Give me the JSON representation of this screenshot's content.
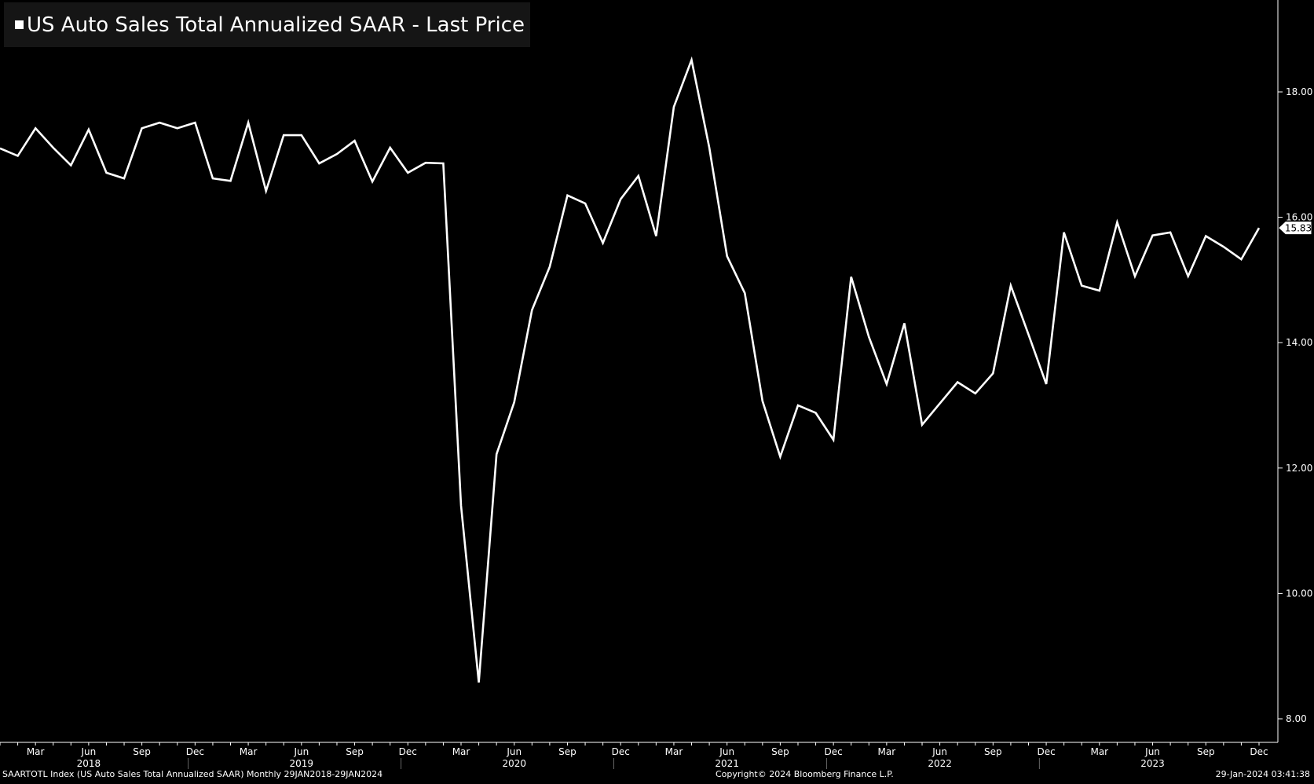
{
  "legend": {
    "text": "US Auto Sales Total Annualized SAAR - Last Price"
  },
  "footer": {
    "left": "SAARTOTL Index (US Auto Sales Total Annualized SAAR)  Monthly 29JAN2018-29JAN2024",
    "center": "Copyright© 2024 Bloomberg Finance L.P.",
    "right": "29-Jan-2024 03:41:38"
  },
  "colors": {
    "background": "#000000",
    "line": "#ffffff",
    "legend_bg": "#151515"
  },
  "chart_data": {
    "type": "line",
    "title": "US Auto Sales Total Annualized SAAR - Last Price",
    "ylim": [
      7.6,
      19.3
    ],
    "y_ticks": [
      "8.00",
      "10.00",
      "12.00",
      "14.00",
      "16.00",
      "18.00"
    ],
    "x_month_ticks": [
      {
        "label": "Mar",
        "x": "2018-03"
      },
      {
        "label": "Jun",
        "x": "2018-06"
      },
      {
        "label": "Sep",
        "x": "2018-09"
      },
      {
        "label": "Dec",
        "x": "2018-12"
      },
      {
        "label": "Mar",
        "x": "2019-03"
      },
      {
        "label": "Jun",
        "x": "2019-06"
      },
      {
        "label": "Sep",
        "x": "2019-09"
      },
      {
        "label": "Dec",
        "x": "2019-12"
      },
      {
        "label": "Mar",
        "x": "2020-03"
      },
      {
        "label": "Jun",
        "x": "2020-06"
      },
      {
        "label": "Sep",
        "x": "2020-09"
      },
      {
        "label": "Dec",
        "x": "2020-12"
      },
      {
        "label": "Mar",
        "x": "2021-03"
      },
      {
        "label": "Jun",
        "x": "2021-06"
      },
      {
        "label": "Sep",
        "x": "2021-09"
      },
      {
        "label": "Dec",
        "x": "2021-12"
      },
      {
        "label": "Mar",
        "x": "2022-03"
      },
      {
        "label": "Jun",
        "x": "2022-06"
      },
      {
        "label": "Sep",
        "x": "2022-09"
      },
      {
        "label": "Dec",
        "x": "2022-12"
      },
      {
        "label": "Mar",
        "x": "2023-03"
      },
      {
        "label": "Jun",
        "x": "2023-06"
      },
      {
        "label": "Sep",
        "x": "2023-09"
      },
      {
        "label": "Dec",
        "x": "2023-12"
      }
    ],
    "x_year_labels": [
      {
        "label": "2018",
        "x": "2018-06"
      },
      {
        "label": "2019",
        "x": "2019-06"
      },
      {
        "label": "2020",
        "x": "2020-06"
      },
      {
        "label": "2021",
        "x": "2021-06"
      },
      {
        "label": "2022",
        "x": "2022-06"
      },
      {
        "label": "2023",
        "x": "2023-06"
      }
    ],
    "last_value_label": "15.83",
    "series": [
      {
        "name": "US Auto Sales Total Annualized SAAR",
        "x": [
          "2018-01",
          "2018-02",
          "2018-03",
          "2018-04",
          "2018-05",
          "2018-06",
          "2018-07",
          "2018-08",
          "2018-09",
          "2018-10",
          "2018-11",
          "2018-12",
          "2019-01",
          "2019-02",
          "2019-03",
          "2019-04",
          "2019-05",
          "2019-06",
          "2019-07",
          "2019-08",
          "2019-09",
          "2019-10",
          "2019-11",
          "2019-12",
          "2020-01",
          "2020-02",
          "2020-03",
          "2020-04",
          "2020-05",
          "2020-06",
          "2020-07",
          "2020-08",
          "2020-09",
          "2020-10",
          "2020-11",
          "2020-12",
          "2021-01",
          "2021-02",
          "2021-03",
          "2021-04",
          "2021-05",
          "2021-06",
          "2021-07",
          "2021-08",
          "2021-09",
          "2021-10",
          "2021-11",
          "2021-12",
          "2022-01",
          "2022-02",
          "2022-03",
          "2022-04",
          "2022-05",
          "2022-06",
          "2022-07",
          "2022-08",
          "2022-09",
          "2022-10",
          "2022-11",
          "2022-12",
          "2023-01",
          "2023-02",
          "2023-03",
          "2023-04",
          "2023-05",
          "2023-06",
          "2023-07",
          "2023-08",
          "2023-09",
          "2023-10",
          "2023-11",
          "2023-12"
        ],
        "values": [
          17.1,
          16.98,
          17.42,
          17.11,
          16.83,
          17.4,
          16.71,
          16.62,
          17.42,
          17.51,
          17.42,
          17.51,
          16.62,
          16.58,
          17.51,
          16.42,
          17.31,
          17.31,
          16.86,
          17.01,
          17.22,
          16.57,
          17.11,
          16.71,
          16.87,
          16.86,
          11.4,
          8.58,
          12.22,
          13.05,
          14.52,
          15.21,
          16.35,
          16.22,
          15.59,
          16.29,
          16.66,
          15.7,
          17.76,
          18.51,
          17.11,
          15.38,
          14.79,
          13.07,
          12.18,
          13.0,
          12.88,
          12.45,
          15.05,
          14.09,
          13.34,
          14.31,
          12.69,
          13.03,
          13.37,
          13.19,
          13.51,
          14.91,
          14.13,
          13.34,
          15.76,
          14.91,
          14.83,
          15.92,
          15.06,
          15.71,
          15.76,
          15.06,
          15.7,
          15.53,
          15.33,
          15.83
        ]
      }
    ]
  }
}
